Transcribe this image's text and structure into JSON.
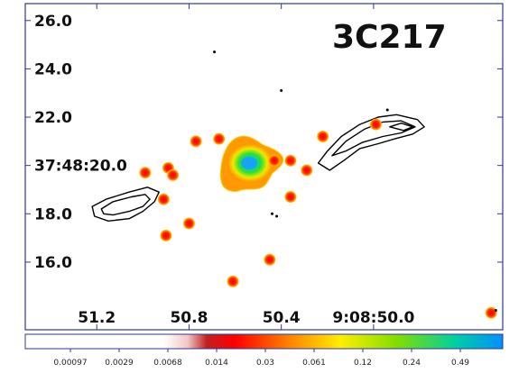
{
  "chart_data": {
    "type": "heatmap",
    "title": "3C217",
    "x_axis": {
      "ticks": [
        {
          "label": "51.2",
          "ra_sec": 51.2
        },
        {
          "label": "50.8",
          "ra_sec": 50.8
        },
        {
          "label": "50.4",
          "ra_sec": 50.4
        },
        {
          "label": "9:08:50.0",
          "ra_sec": 50.0
        }
      ],
      "range": [
        51.51,
        49.44
      ]
    },
    "y_axis": {
      "ticks": [
        {
          "label": "26.0",
          "dec_arcsec": 26.0
        },
        {
          "label": "24.0",
          "dec_arcsec": 24.0
        },
        {
          "label": "22.0",
          "dec_arcsec": 22.0
        },
        {
          "label": "37:48:20.0",
          "dec_arcsec": 20.0
        },
        {
          "label": "18.0",
          "dec_arcsec": 18.0
        },
        {
          "label": "16.0",
          "dec_arcsec": 16.0
        }
      ],
      "range": [
        13.2,
        26.7
      ]
    },
    "colorbar": {
      "labels": [
        "0.00097",
        "0.0029",
        "0.0068",
        "0.014",
        "0.03",
        "0.061",
        "0.12",
        "0.24",
        "0.49"
      ],
      "scale": "log"
    },
    "core": {
      "ra_sec": 50.69,
      "dec_arcsec": 20.2,
      "value": 0.49
    },
    "sources": [
      {
        "ra_sec": 50.69,
        "dec_arcsec": 20.2,
        "value": 0.49
      },
      {
        "ra_sec": 50.99,
        "dec_arcsec": 19.7,
        "value": 0.014
      },
      {
        "ra_sec": 50.89,
        "dec_arcsec": 19.9,
        "value": 0.014
      },
      {
        "ra_sec": 50.87,
        "dec_arcsec": 19.6,
        "value": 0.014
      },
      {
        "ra_sec": 50.77,
        "dec_arcsec": 21.0,
        "value": 0.014
      },
      {
        "ra_sec": 50.67,
        "dec_arcsec": 21.1,
        "value": 0.014
      },
      {
        "ra_sec": 50.91,
        "dec_arcsec": 18.6,
        "value": 0.014
      },
      {
        "ra_sec": 50.8,
        "dec_arcsec": 17.6,
        "value": 0.014
      },
      {
        "ra_sec": 50.9,
        "dec_arcsec": 17.1,
        "value": 0.014
      },
      {
        "ra_sec": 50.43,
        "dec_arcsec": 20.2,
        "value": 0.014
      },
      {
        "ra_sec": 50.36,
        "dec_arcsec": 20.2,
        "value": 0.014
      },
      {
        "ra_sec": 50.29,
        "dec_arcsec": 19.8,
        "value": 0.014
      },
      {
        "ra_sec": 50.36,
        "dec_arcsec": 18.7,
        "value": 0.014
      },
      {
        "ra_sec": 50.45,
        "dec_arcsec": 16.1,
        "value": 0.014
      },
      {
        "ra_sec": 50.61,
        "dec_arcsec": 15.2,
        "value": 0.014
      },
      {
        "ra_sec": 50.22,
        "dec_arcsec": 21.2,
        "value": 0.014
      },
      {
        "ra_sec": 49.99,
        "dec_arcsec": 21.7,
        "value": 0.014
      },
      {
        "ra_sec": 49.49,
        "dec_arcsec": 13.9,
        "value": 0.014
      }
    ],
    "contours": [
      {
        "name": "eastern-lobe",
        "rings": [
          [
            [
              51.22,
              18.3
            ],
            [
              51.16,
              18.6
            ],
            [
              51.06,
              18.9
            ],
            [
              50.98,
              19.1
            ],
            [
              50.93,
              18.9
            ],
            [
              50.95,
              18.5
            ],
            [
              51.0,
              18.1
            ],
            [
              51.06,
              17.8
            ],
            [
              51.15,
              17.7
            ],
            [
              51.21,
              17.9
            ]
          ],
          [
            [
              51.18,
              18.2
            ],
            [
              51.13,
              18.5
            ],
            [
              51.05,
              18.7
            ],
            [
              50.99,
              18.8
            ],
            [
              50.97,
              18.6
            ],
            [
              51.0,
              18.3
            ],
            [
              51.06,
              18.1
            ],
            [
              51.13,
              17.95
            ],
            [
              51.17,
              18.0
            ]
          ]
        ]
      },
      {
        "name": "western-lobe",
        "rings": [
          [
            [
              50.24,
              20.1
            ],
            [
              50.2,
              20.6
            ],
            [
              50.14,
              21.2
            ],
            [
              50.06,
              21.7
            ],
            [
              49.98,
              22.0
            ],
            [
              49.9,
              22.1
            ],
            [
              49.81,
              21.9
            ],
            [
              49.78,
              21.6
            ],
            [
              49.83,
              21.3
            ],
            [
              49.91,
              21.1
            ],
            [
              49.98,
              20.9
            ],
            [
              50.06,
              20.7
            ],
            [
              50.13,
              20.2
            ],
            [
              50.19,
              19.8
            ]
          ],
          [
            [
              50.18,
              20.4
            ],
            [
              50.12,
              21.0
            ],
            [
              50.04,
              21.5
            ],
            [
              49.96,
              21.8
            ],
            [
              49.88,
              21.85
            ],
            [
              49.82,
              21.6
            ],
            [
              49.88,
              21.35
            ],
            [
              49.96,
              21.2
            ],
            [
              50.05,
              20.95
            ],
            [
              50.12,
              20.6
            ]
          ],
          [
            [
              49.93,
              21.6
            ],
            [
              49.88,
              21.75
            ],
            [
              49.83,
              21.6
            ],
            [
              49.87,
              21.45
            ]
          ]
        ]
      }
    ],
    "noise_dots": [
      {
        "ra_sec": 50.69,
        "dec_arcsec": 24.7
      },
      {
        "ra_sec": 50.4,
        "dec_arcsec": 23.1
      },
      {
        "ra_sec": 49.94,
        "dec_arcsec": 22.3
      },
      {
        "ra_sec": 50.44,
        "dec_arcsec": 18.0
      },
      {
        "ra_sec": 50.42,
        "dec_arcsec": 17.9
      },
      {
        "ra_sec": 49.47,
        "dec_arcsec": 14.0
      }
    ]
  }
}
